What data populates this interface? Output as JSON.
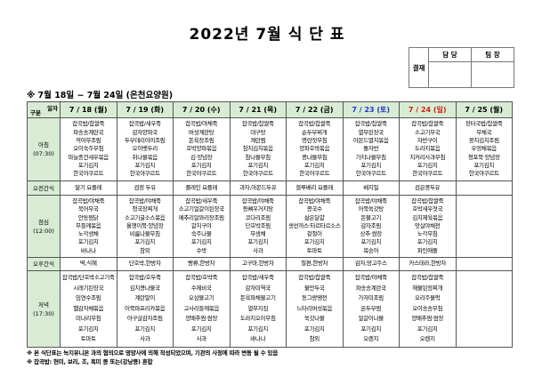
{
  "title": "2022년 7월 식 단 표",
  "approval": {
    "stamp_label": "결재",
    "columns": [
      "담 당",
      "팀 장"
    ]
  },
  "subtitle": "※ 7월 18일 ~ 7월 24일 (은천요양원)",
  "colors": {
    "header_bg": "#d8ecd4",
    "saturday": "#2233cc",
    "sunday": "#cc2211",
    "weekday": "#000000"
  },
  "table": {
    "corner": {
      "top": "일자",
      "bottom": "구분"
    },
    "dates": [
      {
        "label": "7 / 18 (월)",
        "color": "#000000"
      },
      {
        "label": "7 / 19 (화)",
        "color": "#000000"
      },
      {
        "label": "7 / 20 (수)",
        "color": "#000000"
      },
      {
        "label": "7 / 21 (목)",
        "color": "#000000"
      },
      {
        "label": "7 / 22 (금)",
        "color": "#000000"
      },
      {
        "label": "7 / 23 (토)",
        "color": "#2233cc"
      },
      {
        "label": "7 / 24 (일)",
        "color": "#cc2211"
      },
      {
        "label": "7 / 25 (월)",
        "color": "#000000"
      }
    ],
    "rows": [
      {
        "name": "breakfast",
        "label": "아침",
        "time": "(07:30)",
        "cells": [
          [
            "잡곡밥/찹쌀죽",
            "파송송계란국",
            "적어무조림",
            "오이숙주무침",
            "마늘종건새우볶음",
            "포기김치",
            "한국야쿠르트"
          ],
          [
            "잡곡밥/새우죽",
            "감자양파국",
            "두부데리야끼조림",
            "오이뱃두리",
            "취나물볶음",
            "포기김치",
            "한국야쿠르트"
          ],
          [
            "잡곡밥/야채죽",
            "버섯계란탕",
            "돈육장조림",
            "호박양파볶음",
            "김·양념장",
            "포기김치",
            "한국야쿠르트"
          ],
          [
            "잡곡밥/찹쌀죽",
            "대구탕",
            "계란찜",
            "참치김치볶음",
            "참나물무침",
            "포기김치",
            "한국야쿠르트"
          ],
          [
            "잡곡밥/찹쌀죽",
            "순두부찌개",
            "명란젓무침",
            "양파호박볶음",
            "콩나물무침",
            "포기김치",
            "한국야쿠르트"
          ],
          [
            "잡곡밥/찹쌀죽",
            "열무된장국",
            "아몬드멸치볶음",
            "돌자반",
            "가지나물무침",
            "포기김치",
            "한국야쿠르트"
          ],
          [
            "잡곡밥/찹쌀죽",
            "소고기무국",
            "자반구이",
            "도라지볶음",
            "치커리사과무침",
            "포기김치",
            "한국야쿠르트"
          ],
          [
            "장터국밥/찹쌀죽",
            "무채국",
            "꽁치김치조림",
            "우엉채볶음",
            "청포묵·양념장",
            "포기김치",
            "한국야쿠르트"
          ]
        ]
      },
      {
        "name": "am-snack",
        "label": "오전간식",
        "time": "",
        "cells": [
          [
            "딸기 요플레"
          ],
          [
            "검정 두유"
          ],
          [
            "플레인 요플레"
          ],
          [
            "과자,아몬드두유"
          ],
          [
            "블루베리 요플레"
          ],
          [
            "베지밀"
          ],
          [
            "검은콩두유"
          ],
          []
        ]
      },
      {
        "name": "lunch",
        "label": "점심",
        "time": "(12:00)",
        "cells": [
          [
            "잡곡밥/야채죽",
            "북어무국",
            "안동찜닭",
            "무들깨볶음",
            "노각생채",
            "포기김치",
            "바나나"
          ],
          [
            "잡곡밥/야채죽",
            "청국장찌개",
            "소고기굴소스볶음",
            "올챙이묵·양념장",
            "비름나물무침",
            "포기김치",
            "참외"
          ],
          [
            "잡곡밥/새우죽",
            "소고기얼갈이된장국",
            "메추리알꽈리장조림",
            "갈치구이",
            "숙주나물",
            "포기김치",
            "수박"
          ],
          [
            "잡곡밥/야채죽",
            "등뼈우거지탕",
            "코다리조림",
            "단호박조림",
            "무생채",
            "포기김치",
            "사과"
          ],
          [
            "잡곡밥/야채죽",
            "콩국수",
            "삶은달걀",
            "생선까스·타르타르소스",
            "겉절이",
            "포기김치",
            "토마토"
          ],
          [
            "잡곡밥/야채죽",
            "어묵쑥갓탕",
            "돈불고기",
            "감자조림",
            "상추·쌈장",
            "포기김치",
            "복숭아"
          ],
          [
            "잡곡밥/찹쌀죽",
            "호박새우젓국",
            "김치제육볶음",
            "맛살야채전",
            "노각무침",
            "포기김치",
            "파인애플"
          ],
          []
        ]
      },
      {
        "name": "pm-snack",
        "label": "오후간식",
        "time": "",
        "cells": [
          [
            "떡,식혜"
          ],
          [
            "단호박,한방차"
          ],
          [
            "빵류,한방차"
          ],
          [
            "고구마,한방차"
          ],
          [
            "절편,한방차"
          ],
          [
            "감자,망고주스"
          ],
          [
            "카스테라,한방차"
          ],
          []
        ]
      },
      {
        "name": "dinner",
        "label": "저녁",
        "time": "(17:30)",
        "cells": [
          [
            "잡곡밥/단호박소고기죽",
            "시래기된장국",
            "임연수조림",
            "햄감자채볶음",
            "미나리무침",
            "포기김치",
            "토마토"
          ],
          [
            "잡곡밥/호두죽",
            "김치콩나물국",
            "계란말이",
            "어묵파프리카볶음",
            "아구살감자조림",
            "포기김치",
            "사과"
          ],
          [
            "잡곡밥/호박죽",
            "수제비국",
            "오삼불고기",
            "고사리들깨볶음",
            "양배추찜·쌈장",
            "포기김치",
            "사과"
          ],
          [
            "잡곡밥/새우죽",
            "감자미역국",
            "돈육파채불고기",
            "열무지짐",
            "도라지오이무침",
            "포기김치",
            "바나나"
          ],
          [
            "잡곡밥/찹쌀죽",
            "물만두국",
            "동그랑땡전",
            "느타리버섯볶음",
            "쑥갓나물",
            "포기김치",
            "참외"
          ],
          [
            "잡곡밥/야채죽",
            "파송송계란국",
            "가자미조림",
            "온두부찜",
            "얼갈이나물",
            "포기김치",
            "오렌지"
          ],
          [
            "잡곡밥/찹쌀죽",
            "해물된장찌개",
            "오리주물럭",
            "오이송송무침",
            "양배추찜·쌈장",
            "포기김치",
            "오렌지"
          ],
          []
        ]
      }
    ]
  },
  "notes": [
    "※ 본 식단표는 녹지유니온 과의 협의으로 영양사에 의해 작성되었으며, 기관의 사정에 따라 변동 될 수 있음",
    "※ 잡곡밥: 현미, 보리, 조, 흑미 콩 또는(강낭콩) 혼합"
  ]
}
